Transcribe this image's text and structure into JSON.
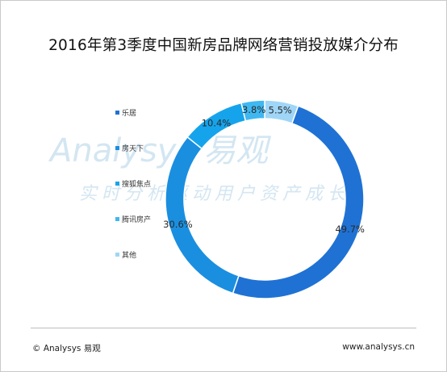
{
  "title": "2016年第3季度中国新房品牌网络营销投放媒介分布",
  "watermark": {
    "brand": "Analysys 易观",
    "slogan": "实时分析驱动用户资产成长"
  },
  "footer": {
    "copyright": "© Analysys 易观",
    "website": "www.analysys.cn"
  },
  "colors": {
    "乐居": "#1f72d4",
    "房天下": "#1a8fe0",
    "搜狐焦点": "#15a4ec",
    "腾讯房产": "#3fb8f1",
    "其他": "#9fd6f7"
  },
  "chart_data": {
    "type": "pie",
    "title": "2016年第3季度中国新房品牌网络营销投放媒介分布",
    "categories": [
      "乐居",
      "房天下",
      "搜狐焦点",
      "腾讯房产",
      "其他"
    ],
    "values": [
      49.7,
      30.6,
      10.4,
      3.8,
      5.5
    ],
    "value_labels": [
      "49.7%",
      "30.6%",
      "10.4%",
      "3.8%",
      "5.5%"
    ],
    "donut": true,
    "legend_position": "left"
  }
}
